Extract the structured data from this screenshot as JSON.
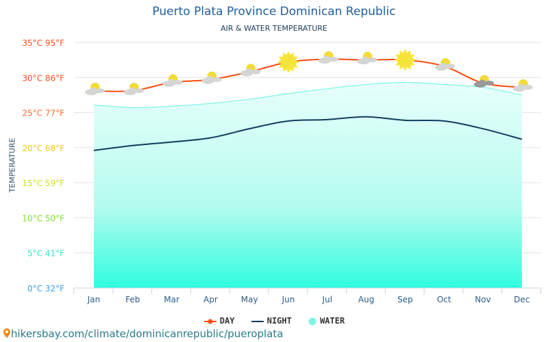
{
  "chart_data": {
    "type": "line",
    "title": "Puerto Plata Province Dominican Republic",
    "subtitle": "AIR & WATER TEMPERATURE",
    "ylabel": "TEMPERATURE",
    "ylim": [
      0,
      35
    ],
    "grid": true,
    "legend_position": "bottom",
    "categories": [
      "Jan",
      "Feb",
      "Mar",
      "Apr",
      "May",
      "Jun",
      "Jul",
      "Aug",
      "Sep",
      "Oct",
      "Nov",
      "Dec"
    ],
    "y_ticks": [
      {
        "value": 35,
        "label": "35°C 95°F",
        "color": "#ff4d1a"
      },
      {
        "value": 30,
        "label": "30°C 86°F",
        "color": "#ff4d1a"
      },
      {
        "value": 25,
        "label": "25°C 77°F",
        "color": "#ff6a2a"
      },
      {
        "value": 20,
        "label": "20°C 68°F",
        "color": "#f0c419"
      },
      {
        "value": 15,
        "label": "15°C 59°F",
        "color": "#cde021"
      },
      {
        "value": 10,
        "label": "10°C 50°F",
        "color": "#7be02a"
      },
      {
        "value": 5,
        "label": "5°C 41°F",
        "color": "#2de8c4"
      },
      {
        "value": 0,
        "label": "0°C 32°F",
        "color": "#3aa0e0"
      }
    ],
    "series": [
      {
        "name": "DAY",
        "color": "#ff4b0f",
        "values": [
          28.1,
          28.1,
          29.3,
          29.7,
          30.8,
          32.2,
          32.6,
          32.5,
          32.5,
          31.6,
          29.2,
          28.6
        ]
      },
      {
        "name": "NIGHT",
        "color": "#0f3b5c",
        "values": [
          19.6,
          20.3,
          20.8,
          21.4,
          22.7,
          23.8,
          24.0,
          24.4,
          23.9,
          23.8,
          22.7,
          21.2
        ]
      },
      {
        "name": "WATER",
        "color": "#7ff5e6",
        "type": "area",
        "values": [
          26.1,
          25.7,
          25.9,
          26.3,
          26.9,
          27.7,
          28.4,
          29.0,
          29.3,
          29.0,
          28.6,
          27.5
        ]
      }
    ],
    "weather_icons": [
      "partly-cloudy",
      "partly-cloudy",
      "partly-cloudy",
      "partly-cloudy",
      "partly-cloudy",
      "sunny",
      "partly-cloudy",
      "partly-cloudy",
      "sunny",
      "partly-cloudy",
      "rain-showers",
      "partly-cloudy"
    ]
  },
  "footer": {
    "text": "hikersbay.com/climate/dominicanrepublic/pueroplata",
    "icon": "location-pin-icon"
  }
}
